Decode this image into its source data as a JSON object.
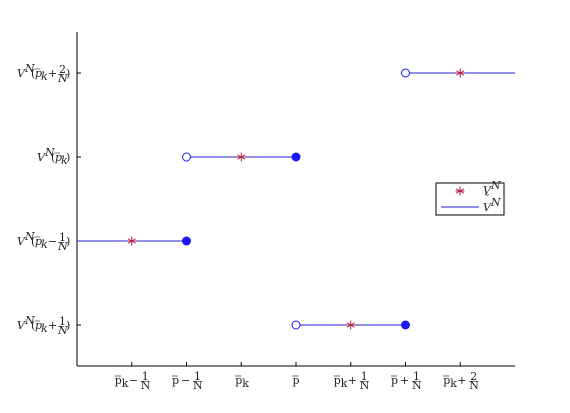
{
  "chart_data": {
    "type": "line",
    "title": "",
    "xlabel": "",
    "ylabel": "",
    "x_ticks": [
      {
        "pos": 1,
        "base": "p",
        "sub": "k",
        "bar": true,
        "op": "−",
        "frac": [
          "1",
          "N"
        ]
      },
      {
        "pos": 2,
        "base": "p",
        "sub": "",
        "bar": true,
        "op": "−",
        "frac": [
          "1",
          "N"
        ]
      },
      {
        "pos": 3,
        "base": "p",
        "sub": "k",
        "bar": true,
        "op": "",
        "frac": null
      },
      {
        "pos": 4,
        "base": "p",
        "sub": "",
        "bar": true,
        "op": "",
        "frac": null
      },
      {
        "pos": 5,
        "base": "p",
        "sub": "k",
        "bar": true,
        "op": "+",
        "frac": [
          "1",
          "N"
        ]
      },
      {
        "pos": 6,
        "base": "p",
        "sub": "",
        "bar": true,
        "op": "+",
        "frac": [
          "1",
          "N"
        ]
      },
      {
        "pos": 7,
        "base": "p",
        "sub": "k",
        "bar": true,
        "op": "+",
        "frac": [
          "2",
          "N"
        ]
      }
    ],
    "y_ticks": [
      {
        "pos": 4,
        "op": "+",
        "frac": [
          "2",
          "N"
        ]
      },
      {
        "pos": 3,
        "op": "",
        "frac": null
      },
      {
        "pos": 2,
        "op": "−",
        "frac": [
          "1",
          "N"
        ]
      },
      {
        "pos": 1,
        "op": "+",
        "frac": [
          "1",
          "N"
        ]
      }
    ],
    "xlim": [
      0,
      8
    ],
    "ylim": [
      0.5,
      4.5
    ],
    "series": [
      {
        "name": "V^N",
        "marker": "asterisk",
        "color": "#b0204a",
        "points": [
          [
            1,
            2
          ],
          [
            3,
            3
          ],
          [
            5,
            1
          ],
          [
            7,
            4
          ]
        ]
      },
      {
        "name": "Ṽ^N",
        "marker": "none",
        "color": "#2222cc",
        "segments": [
          {
            "x": [
              0,
              2
            ],
            "y": 2,
            "open_start": null,
            "closed_end": true
          },
          {
            "x": [
              2,
              4
            ],
            "y": 3,
            "open_start": true,
            "closed_end": true
          },
          {
            "x": [
              4,
              6
            ],
            "y": 1,
            "open_start": true,
            "closed_end": true
          },
          {
            "x": [
              6,
              8
            ],
            "y": 4,
            "open_start": true,
            "closed_end": false
          }
        ]
      }
    ],
    "legend": {
      "placement": "right",
      "entries": [
        {
          "label": "V",
          "sup": "N",
          "tilde": false
        },
        {
          "label": "V",
          "sup": "N",
          "tilde": true
        }
      ]
    },
    "grid": false,
    "y_label_base": "V",
    "y_label_sup": "N",
    "y_label_arg": "p",
    "y_label_sub": "k",
    "colors": {
      "line": "#2222cc",
      "marker": "#b0204a",
      "dot": "#1a1aee",
      "axis": "#000000"
    }
  }
}
